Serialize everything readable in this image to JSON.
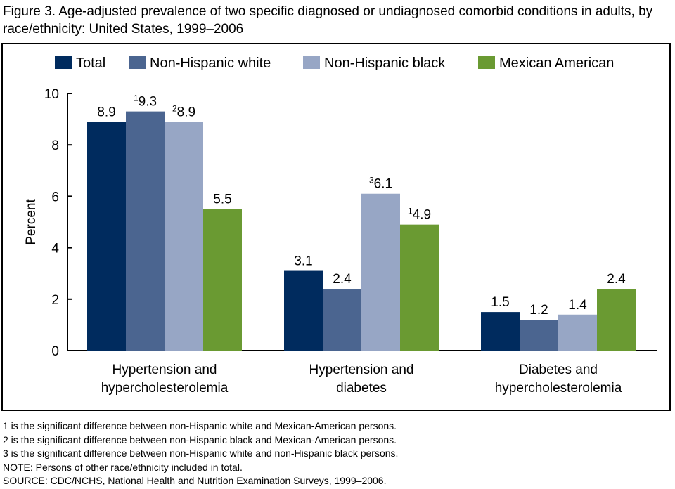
{
  "title": "Figure 3.  Age-adjusted prevalence of two specific diagnosed or undiagnosed comorbid conditions in adults, by race/ethnicity: United States, 1999–2006",
  "chart_data": {
    "type": "bar",
    "title": "",
    "ylabel": "Percent",
    "xlabel": "",
    "ylim": [
      0,
      10
    ],
    "yticks": [
      0,
      2,
      4,
      6,
      8,
      10
    ],
    "grid": false,
    "legend": "top",
    "categories": [
      [
        "Hypertension and",
        "hypercholesterolemia"
      ],
      [
        "Hypertension and",
        "diabetes"
      ],
      [
        "Diabetes and",
        "hypercholesterolemia"
      ]
    ],
    "series": [
      {
        "name": "Total",
        "color": "#002b5e",
        "values": [
          8.9,
          3.1,
          1.5
        ],
        "notes": [
          "",
          "",
          ""
        ]
      },
      {
        "name": "Non-Hispanic white",
        "color": "#4b6590",
        "values": [
          9.3,
          2.4,
          1.2
        ],
        "notes": [
          "1",
          "",
          ""
        ]
      },
      {
        "name": "Non-Hispanic black",
        "color": "#97a6c5",
        "values": [
          8.9,
          6.1,
          1.4
        ],
        "notes": [
          "2",
          "3",
          ""
        ]
      },
      {
        "name": "Mexican American",
        "color": "#6a9a32",
        "values": [
          5.5,
          4.9,
          2.4
        ],
        "notes": [
          "",
          "1",
          ""
        ]
      }
    ]
  },
  "footnotes": [
    "1 is the significant difference between non-Hispanic white and Mexican-American persons.",
    "2 is the significant difference between non-Hispanic black and Mexican-American persons.",
    "3 is the significant difference between non-Hispanic white and non-Hispanic black persons.",
    "NOTE: Persons of other race/ethnicity included in total.",
    "SOURCE: CDC/NCHS, National Health and Nutrition Examination Surveys, 1999–2006."
  ]
}
